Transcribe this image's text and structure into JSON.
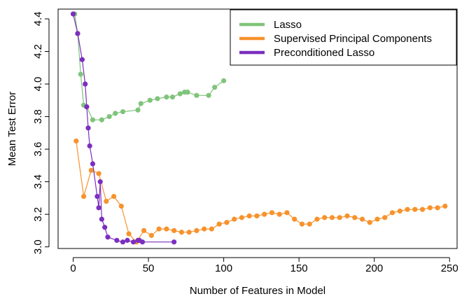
{
  "chart_data": {
    "type": "line",
    "xlabel": "Number of Features in Model",
    "ylabel": "Mean Test Error",
    "xlim": [
      -10,
      255
    ],
    "ylim": [
      2.99,
      4.46
    ],
    "xticks": [
      0,
      50,
      100,
      150,
      200,
      250
    ],
    "yticks": [
      3.0,
      3.2,
      3.4,
      3.6,
      3.8,
      4.0,
      4.2,
      4.4
    ],
    "ytick_labels": [
      "3.0",
      "3.2",
      "3.4",
      "3.6",
      "3.8",
      "4.0",
      "4.2",
      "4.4"
    ],
    "xtick_labels": [
      "0",
      "50",
      "100",
      "150",
      "200",
      "250"
    ],
    "legend_position": "top-right",
    "series": [
      {
        "name": "Lasso",
        "color": "#7fc47a",
        "x": [
          1,
          3,
          5,
          7,
          9,
          13,
          19,
          24,
          28,
          33,
          43,
          45,
          51,
          56,
          62,
          66,
          71,
          74,
          76,
          82,
          90,
          94,
          100
        ],
        "y": [
          4.43,
          4.31,
          4.06,
          3.87,
          3.86,
          3.78,
          3.78,
          3.8,
          3.82,
          3.83,
          3.84,
          3.88,
          3.9,
          3.91,
          3.92,
          3.92,
          3.94,
          3.95,
          3.95,
          3.93,
          3.93,
          3.98,
          4.02
        ]
      },
      {
        "name": "Supervised Principal Components",
        "color": "#f7922c",
        "x": [
          2,
          7,
          12,
          17,
          22,
          27,
          32,
          37,
          42,
          47,
          52,
          57,
          62,
          67,
          72,
          77,
          82,
          87,
          92,
          97,
          102,
          107,
          112,
          117,
          122,
          127,
          132,
          137,
          142,
          147,
          152,
          157,
          162,
          167,
          172,
          177,
          182,
          187,
          192,
          197,
          202,
          207,
          212,
          217,
          222,
          227,
          232,
          237,
          242,
          247
        ],
        "y": [
          3.65,
          3.31,
          3.47,
          3.45,
          3.28,
          3.31,
          3.25,
          3.08,
          3.03,
          3.1,
          3.07,
          3.11,
          3.11,
          3.1,
          3.09,
          3.09,
          3.1,
          3.11,
          3.11,
          3.14,
          3.15,
          3.17,
          3.18,
          3.19,
          3.19,
          3.2,
          3.21,
          3.2,
          3.21,
          3.17,
          3.14,
          3.14,
          3.17,
          3.18,
          3.18,
          3.18,
          3.19,
          3.18,
          3.17,
          3.15,
          3.17,
          3.18,
          3.21,
          3.22,
          3.23,
          3.23,
          3.23,
          3.24,
          3.24,
          3.25
        ]
      },
      {
        "name": "Preconditioned Lasso",
        "color": "#7b2fbf",
        "x": [
          0,
          3,
          6,
          8,
          9,
          10,
          11,
          13,
          16,
          17,
          18,
          19,
          21,
          23,
          29,
          33,
          36,
          40,
          43,
          44,
          46,
          67
        ],
        "y": [
          4.43,
          4.31,
          4.15,
          4.0,
          3.86,
          3.73,
          3.62,
          3.51,
          3.31,
          3.24,
          3.4,
          3.17,
          3.12,
          3.06,
          3.04,
          3.03,
          3.04,
          3.03,
          3.04,
          3.04,
          3.03,
          3.03
        ]
      }
    ]
  }
}
